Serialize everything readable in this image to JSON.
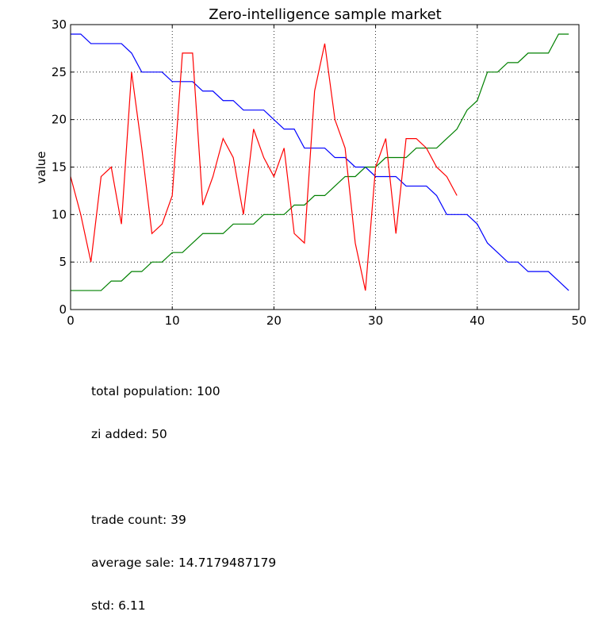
{
  "chart_data": {
    "type": "line",
    "title": "Zero-intelligence sample market",
    "xlabel": "",
    "ylabel": "value",
    "xlim": [
      0,
      50
    ],
    "ylim": [
      0,
      30
    ],
    "xticks": [
      "0",
      "10",
      "20",
      "30",
      "40",
      "50"
    ],
    "yticks": [
      "0",
      "5",
      "10",
      "15",
      "20",
      "25",
      "30"
    ],
    "grid": true,
    "series": [
      {
        "color": "#0000ff",
        "x": [
          0,
          1,
          2,
          3,
          4,
          5,
          6,
          7,
          8,
          9,
          10,
          11,
          12,
          13,
          14,
          15,
          16,
          17,
          18,
          19,
          20,
          21,
          22,
          23,
          24,
          25,
          26,
          27,
          28,
          29,
          30,
          31,
          32,
          33,
          34,
          35,
          36,
          37,
          38,
          39,
          40,
          41,
          42,
          43,
          44,
          45,
          46,
          47,
          48,
          49
        ],
        "values": [
          29,
          29,
          28,
          28,
          28,
          28,
          27,
          25,
          25,
          25,
          24,
          24,
          24,
          23,
          23,
          22,
          22,
          21,
          21,
          21,
          20,
          19,
          19,
          17,
          17,
          17,
          16,
          16,
          15,
          15,
          14,
          14,
          14,
          13,
          13,
          13,
          12,
          10,
          10,
          10,
          9,
          7,
          6,
          5,
          5,
          4,
          4,
          4,
          3,
          2
        ]
      },
      {
        "color": "#008000",
        "x": [
          0,
          1,
          2,
          3,
          4,
          5,
          6,
          7,
          8,
          9,
          10,
          11,
          12,
          13,
          14,
          15,
          16,
          17,
          18,
          19,
          20,
          21,
          22,
          23,
          24,
          25,
          26,
          27,
          28,
          29,
          30,
          31,
          32,
          33,
          34,
          35,
          36,
          37,
          38,
          39,
          40,
          41,
          42,
          43,
          44,
          45,
          46,
          47,
          48,
          49
        ],
        "values": [
          2,
          2,
          2,
          2,
          3,
          3,
          4,
          4,
          5,
          5,
          6,
          6,
          7,
          8,
          8,
          8,
          9,
          9,
          9,
          10,
          10,
          10,
          11,
          11,
          12,
          12,
          13,
          14,
          14,
          15,
          15,
          16,
          16,
          16,
          17,
          17,
          17,
          18,
          19,
          21,
          22,
          25,
          25,
          26,
          26,
          27,
          27,
          27,
          29,
          29
        ]
      },
      {
        "color": "#ff0000",
        "x": [
          0,
          1,
          2,
          3,
          4,
          5,
          6,
          7,
          8,
          9,
          10,
          11,
          12,
          13,
          14,
          15,
          16,
          17,
          18,
          19,
          20,
          21,
          22,
          23,
          24,
          25,
          26,
          27,
          28,
          29,
          30,
          31,
          32,
          33,
          34,
          35,
          36,
          37,
          38
        ],
        "values": [
          14,
          10,
          5,
          14,
          15,
          9,
          25,
          17,
          8,
          9,
          12,
          27,
          27,
          11,
          14,
          18,
          16,
          10,
          19,
          16,
          14,
          17,
          8,
          7,
          23,
          28,
          20,
          17,
          7,
          2,
          15,
          18,
          8,
          18,
          18,
          17,
          15,
          14,
          12
        ]
      }
    ]
  },
  "stats": {
    "population": "total population: 100",
    "zi_added": "zi added: 50",
    "trade_count": "trade count: 39",
    "average_sale": "average sale: 14.7179487179",
    "std": "std: 6.11"
  }
}
